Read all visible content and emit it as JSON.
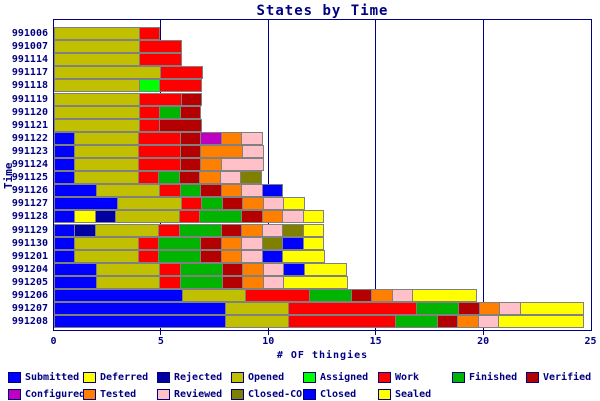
{
  "title": "States by Time",
  "x_axis": {
    "label": "# OF thingies",
    "ticks": [
      0,
      5,
      10,
      15,
      20,
      25
    ],
    "max": 25
  },
  "y_axis": {
    "label": "Time"
  },
  "colors": {
    "Submitted": "#0000ff",
    "Deferred": "#ffff00",
    "Rejected": "#0000a0",
    "Opened": "#c0c000",
    "Assigned": "#00ff00",
    "Work": "#ff0000",
    "Finished": "#00b400",
    "Verified": "#b40000",
    "Configured": "#c000c0",
    "Tested": "#ff8000",
    "Reviewed": "#ffc0c8",
    "Closed-CO": "#808000",
    "Closed": "#0000ff",
    "Sealed": "#ffff00"
  },
  "legend": {
    "rows": [
      [
        "Submitted",
        "Deferred",
        "Rejected",
        "Opened",
        "Assigned",
        "Work",
        "Finished",
        "Verified"
      ],
      [
        "Configured",
        "Tested",
        "Reviewed",
        "Closed-CO",
        "Closed",
        "Sealed"
      ]
    ]
  },
  "chart_data": {
    "type": "bar",
    "orientation": "horizontal",
    "stacked": true,
    "title": "States by Time",
    "xlabel": "# OF thingies",
    "ylabel": "Time",
    "xlim": [
      0,
      25
    ],
    "grid_x": [
      5,
      10,
      15,
      20
    ],
    "legend_position": "bottom",
    "categories": [
      "991006",
      "991007",
      "991114",
      "991117",
      "991118",
      "991119",
      "991120",
      "991121",
      "991122",
      "991123",
      "991124",
      "991125",
      "991126",
      "991127",
      "991128",
      "991129",
      "991130",
      "991201",
      "991204",
      "991205",
      "991206",
      "991207",
      "991208"
    ],
    "series": [
      {
        "name": "Submitted",
        "values": [
          0,
          0,
          0,
          0,
          0,
          0,
          0,
          0,
          1,
          1,
          1,
          1,
          2,
          3,
          1,
          1,
          1,
          1,
          2,
          2,
          6,
          8,
          8
        ]
      },
      {
        "name": "Deferred",
        "values": [
          0,
          0,
          0,
          0,
          0,
          0,
          0,
          0,
          0,
          0,
          0,
          0,
          0,
          0,
          1,
          0,
          0,
          0,
          0,
          0,
          0,
          0,
          0
        ]
      },
      {
        "name": "Rejected",
        "values": [
          0,
          0,
          0,
          0,
          0,
          0,
          0,
          0,
          0,
          0,
          0,
          0,
          0,
          0,
          1,
          1,
          0,
          0,
          0,
          0,
          0,
          0,
          0
        ]
      },
      {
        "name": "Opened",
        "values": [
          4,
          4,
          4,
          5,
          4,
          4,
          4,
          4,
          3,
          3,
          3,
          3,
          3,
          3,
          3,
          3,
          3,
          3,
          3,
          3,
          3,
          3,
          3
        ]
      },
      {
        "name": "Assigned",
        "values": [
          0,
          0,
          0,
          0,
          1,
          0,
          0,
          0,
          0,
          0,
          0,
          0,
          0,
          0,
          0,
          0,
          0,
          0,
          0,
          0,
          0,
          0,
          0
        ]
      },
      {
        "name": "Work",
        "values": [
          1,
          2,
          2,
          2,
          2,
          2,
          1,
          1,
          2,
          2,
          2,
          1,
          1,
          1,
          1,
          1,
          1,
          1,
          1,
          1,
          3,
          6,
          5
        ]
      },
      {
        "name": "Finished",
        "values": [
          0,
          0,
          0,
          0,
          0,
          0,
          1,
          0,
          0,
          0,
          0,
          1,
          1,
          1,
          2,
          2,
          2,
          2,
          2,
          2,
          2,
          2,
          2
        ]
      },
      {
        "name": "Verified",
        "values": [
          0,
          0,
          0,
          0,
          0,
          1,
          1,
          2,
          1,
          1,
          1,
          1,
          1,
          1,
          1,
          1,
          1,
          1,
          1,
          1,
          1,
          1,
          1
        ]
      },
      {
        "name": "Configured",
        "values": [
          0,
          0,
          0,
          0,
          0,
          0,
          0,
          0,
          1,
          0,
          0,
          0,
          0,
          0,
          0,
          0,
          0,
          0,
          0,
          0,
          0,
          0,
          0
        ]
      },
      {
        "name": "Tested",
        "values": [
          0,
          0,
          0,
          0,
          0,
          0,
          0,
          0,
          1,
          2,
          1,
          1,
          1,
          1,
          1,
          1,
          1,
          1,
          1,
          1,
          1,
          1,
          1
        ]
      },
      {
        "name": "Reviewed",
        "values": [
          0,
          0,
          0,
          0,
          0,
          0,
          0,
          0,
          1,
          1,
          2,
          1,
          1,
          1,
          1,
          1,
          1,
          1,
          1,
          1,
          1,
          1,
          1
        ]
      },
      {
        "name": "Closed-CO",
        "values": [
          0,
          0,
          0,
          0,
          0,
          0,
          0,
          0,
          0,
          0,
          0,
          1,
          0,
          0,
          0,
          1,
          1,
          0,
          0,
          0,
          0,
          0,
          0
        ]
      },
      {
        "name": "Closed",
        "values": [
          0,
          0,
          0,
          0,
          0,
          0,
          0,
          0,
          0,
          0,
          0,
          0,
          1,
          0,
          0,
          0,
          1,
          1,
          1,
          0,
          0,
          0,
          0
        ]
      },
      {
        "name": "Sealed",
        "values": [
          0,
          0,
          0,
          0,
          0,
          0,
          0,
          0,
          0,
          0,
          0,
          0,
          0,
          1,
          1,
          1,
          1,
          2,
          2,
          3,
          3,
          3,
          4
        ]
      }
    ]
  }
}
